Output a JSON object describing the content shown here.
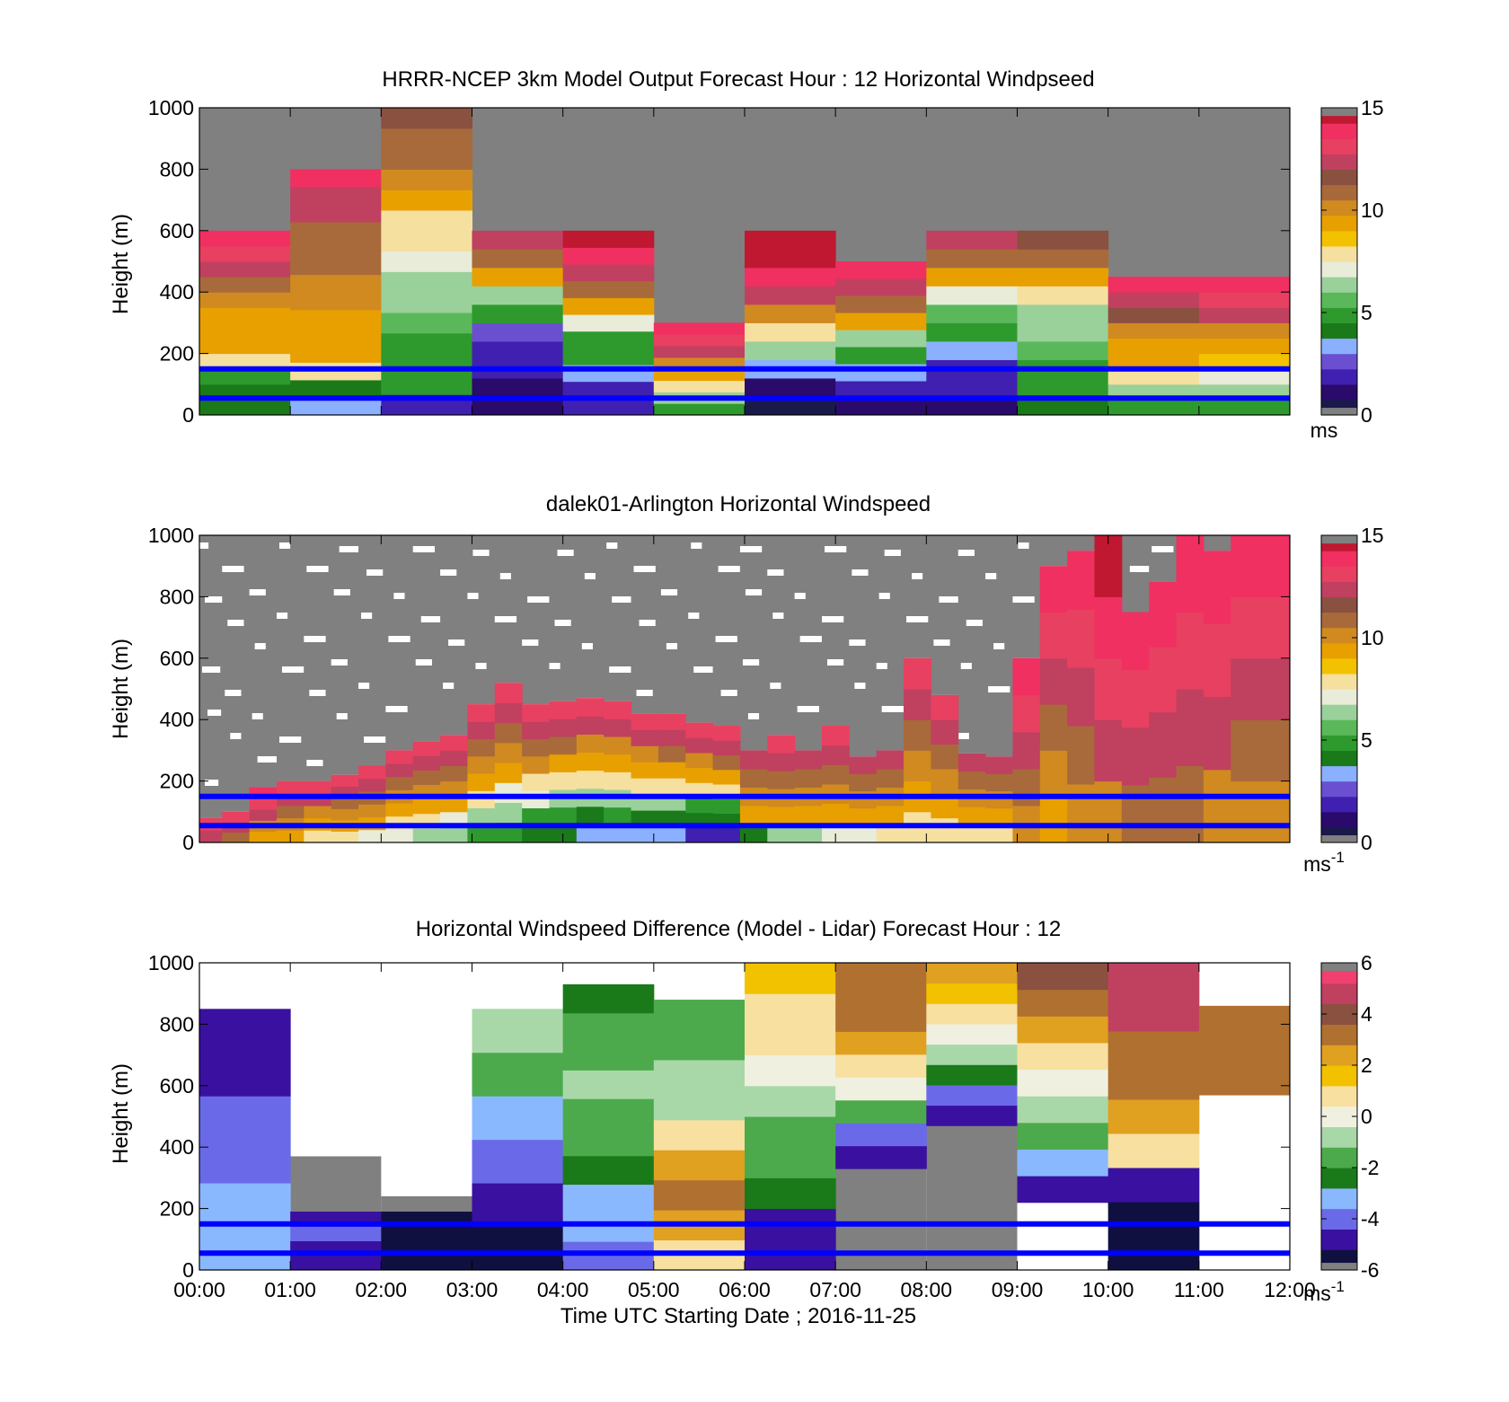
{
  "colors": {
    "background": "#ffffff",
    "no_data_gray": "#808080",
    "marker_line_blue": "#0000ff"
  },
  "colormaps": {
    "speed": [
      "#808080",
      "#1a1a4a",
      "#2a0a6a",
      "#4020b0",
      "#6a50d0",
      "#8ab0ff",
      "#1a7a1a",
      "#2e9a2e",
      "#5ab85a",
      "#9ad09a",
      "#e8ecd8",
      "#f5e0a0",
      "#f2c200",
      "#e8a000",
      "#d08a20",
      "#a86a3a",
      "#8a5040",
      "#c04060",
      "#e84060",
      "#f03060",
      "#c01830",
      "#808080"
    ],
    "diff": [
      "#808080",
      "#101040",
      "#3a10a0",
      "#6a6ae8",
      "#8ab8ff",
      "#1a7a1a",
      "#4caa4c",
      "#a8d8a8",
      "#f0f0e0",
      "#f8e0a0",
      "#f2c200",
      "#e0a020",
      "#b07030",
      "#8a5040",
      "#c04060",
      "#f04070",
      "#808080"
    ]
  },
  "chart_data": [
    {
      "type": "heatmap",
      "title": "HRRR-NCEP 3km Model Output   Forecast Hour : 12 Horizontal Windpseed",
      "ylabel": "Height (m)",
      "xlabel": "",
      "ylim": [
        0,
        1000
      ],
      "yticks": [
        "0",
        "200",
        "400",
        "600",
        "800",
        "1000"
      ],
      "xlim": [
        "00:00",
        "12:00"
      ],
      "colorbar": {
        "min": 0,
        "max": 15,
        "ticks": [
          "0",
          "5",
          "10",
          "15"
        ],
        "unit": "ms",
        "unit_sup": ""
      },
      "marker_lines_m": [
        150,
        55
      ],
      "columns": [
        {
          "t0": 0,
          "t1": 1,
          "top": 600,
          "v": [
            4,
            4,
            5,
            8,
            9.5,
            9.5,
            9.5,
            10,
            11,
            12,
            13,
            14
          ]
        },
        {
          "t0": 1,
          "t1": 2,
          "top": 800,
          "v": [
            3,
            4,
            8,
            9,
            9.5,
            9.5,
            10,
            10,
            10.5,
            11,
            11,
            12,
            12,
            14
          ]
        },
        {
          "t0": 2,
          "t1": 3,
          "top": 1000,
          "v": [
            2,
            4.5,
            4.5,
            5,
            5.5,
            6,
            6.5,
            7,
            7.5,
            8,
            9,
            10,
            10.5,
            11,
            11.5
          ]
        },
        {
          "t0": 3,
          "t1": 4,
          "top": 600,
          "v": [
            1,
            1,
            1.5,
            2,
            2.5,
            4.5,
            6,
            9,
            11,
            12
          ]
        },
        {
          "t0": 4,
          "t1": 5,
          "top": 600,
          "v": [
            1.5,
            2,
            3,
            4.5,
            5,
            7,
            9,
            11,
            12,
            14,
            14.5
          ]
        },
        {
          "t0": 5,
          "t1": 6,
          "top": 300,
          "v": [
            5,
            6,
            8,
            9,
            10,
            12,
            13,
            14
          ]
        },
        {
          "t0": 6,
          "t1": 7,
          "top": 600,
          "v": [
            0.5,
            1,
            3,
            6,
            8,
            10,
            12,
            13.5,
            14.5,
            15
          ]
        },
        {
          "t0": 7,
          "t1": 8,
          "top": 500,
          "v": [
            1,
            1.5,
            3,
            4.5,
            6.5,
            9,
            11,
            12,
            13.5
          ]
        },
        {
          "t0": 8,
          "t1": 9,
          "top": 600,
          "v": [
            1,
            1.5,
            2,
            3.5,
            4.5,
            5.5,
            7,
            9.5,
            11,
            12.5
          ]
        },
        {
          "t0": 9,
          "t1": 10,
          "top": 600,
          "v": [
            4,
            4.5,
            5,
            5.5,
            6,
            6.5,
            8,
            9.5,
            11,
            11.5
          ]
        },
        {
          "t0": 10,
          "t1": 11,
          "top": 450,
          "v": [
            5,
            6.5,
            7.5,
            9,
            9.5,
            10,
            11.5,
            12.5,
            13.5
          ]
        },
        {
          "t0": 11,
          "t1": 12,
          "top": 450,
          "v": [
            5,
            6,
            7,
            8.5,
            9.5,
            10,
            12,
            13,
            14
          ]
        }
      ]
    },
    {
      "type": "heatmap",
      "title": "dalek01-Arlington  Horizontal Windspeed",
      "ylabel": "Height (m)",
      "xlabel": "",
      "ylim": [
        0,
        1000
      ],
      "yticks": [
        "0",
        "200",
        "400",
        "600",
        "800",
        "1000"
      ],
      "xlim": [
        "00:00",
        "12:00"
      ],
      "colorbar": {
        "min": 0,
        "max": 15,
        "ticks": [
          "0",
          "5",
          "10",
          "15"
        ],
        "unit": "ms",
        "unit_sup": "-1"
      },
      "marker_lines_m": [
        150,
        55
      ],
      "columns": [
        {
          "t0": 0.0,
          "t1": 0.25,
          "top": 80,
          "v": [
            12,
            13
          ]
        },
        {
          "t0": 0.25,
          "t1": 0.55,
          "top": 100,
          "v": [
            11,
            12,
            13
          ]
        },
        {
          "t0": 0.55,
          "t1": 0.85,
          "top": 180,
          "v": [
            9,
            10,
            12,
            13,
            14
          ]
        },
        {
          "t0": 0.85,
          "t1": 1.15,
          "top": 200,
          "v": [
            9,
            10,
            11,
            12,
            13
          ]
        },
        {
          "t0": 1.15,
          "t1": 1.45,
          "top": 200,
          "v": [
            8,
            9,
            10,
            12,
            13
          ]
        },
        {
          "t0": 1.45,
          "t1": 1.75,
          "top": 220,
          "v": [
            8,
            9,
            10,
            11,
            12,
            13
          ]
        },
        {
          "t0": 1.75,
          "t1": 2.05,
          "top": 250,
          "v": [
            7,
            9,
            10,
            11,
            12,
            13
          ]
        },
        {
          "t0": 2.05,
          "t1": 2.35,
          "top": 300,
          "v": [
            7,
            8,
            9,
            10,
            11,
            12,
            13
          ]
        },
        {
          "t0": 2.35,
          "t1": 2.65,
          "top": 330,
          "v": [
            6,
            8,
            9,
            10,
            11,
            12,
            13
          ]
        },
        {
          "t0": 2.65,
          "t1": 2.95,
          "top": 350,
          "v": [
            6,
            7,
            9,
            10,
            11,
            12,
            13
          ]
        },
        {
          "t0": 2.95,
          "t1": 3.25,
          "top": 450,
          "v": [
            5,
            6,
            8,
            9,
            10,
            11,
            12,
            13
          ]
        },
        {
          "t0": 3.25,
          "t1": 3.55,
          "top": 520,
          "v": [
            5,
            6,
            7,
            9,
            10,
            11,
            12,
            13
          ]
        },
        {
          "t0": 3.55,
          "t1": 3.85,
          "top": 450,
          "v": [
            4,
            5,
            7,
            8,
            10,
            11,
            12,
            13
          ]
        },
        {
          "t0": 3.85,
          "t1": 4.15,
          "top": 460,
          "v": [
            4,
            5,
            6,
            8,
            9,
            11,
            12,
            13
          ]
        },
        {
          "t0": 4.15,
          "t1": 4.45,
          "top": 470,
          "v": [
            3,
            4,
            6,
            8,
            9,
            10,
            12,
            13
          ]
        },
        {
          "t0": 4.45,
          "t1": 4.75,
          "top": 460,
          "v": [
            3,
            5,
            6,
            8,
            9,
            10,
            12,
            13
          ]
        },
        {
          "t0": 4.75,
          "t1": 5.05,
          "top": 420,
          "v": [
            3,
            4,
            6,
            8,
            9,
            10,
            12,
            13
          ]
        },
        {
          "t0": 5.05,
          "t1": 5.35,
          "top": 420,
          "v": [
            3,
            4,
            6,
            8,
            9,
            11,
            12,
            13
          ]
        },
        {
          "t0": 5.35,
          "t1": 5.65,
          "top": 390,
          "v": [
            2,
            4,
            5,
            8,
            9,
            10,
            12,
            13
          ]
        },
        {
          "t0": 5.65,
          "t1": 5.95,
          "top": 380,
          "v": [
            2,
            4,
            5,
            8,
            9,
            11,
            12,
            13
          ]
        },
        {
          "t0": 5.95,
          "t1": 6.25,
          "top": 300,
          "v": [
            4,
            9,
            10,
            11,
            12
          ]
        },
        {
          "t0": 6.25,
          "t1": 6.55,
          "top": 350,
          "v": [
            6,
            9,
            10,
            11,
            12,
            13
          ]
        },
        {
          "t0": 6.55,
          "t1": 6.85,
          "top": 300,
          "v": [
            6,
            9,
            10,
            11,
            12
          ]
        },
        {
          "t0": 6.85,
          "t1": 7.15,
          "top": 380,
          "v": [
            7,
            9,
            10,
            11,
            12,
            13
          ]
        },
        {
          "t0": 7.15,
          "t1": 7.45,
          "top": 280,
          "v": [
            7,
            9,
            10,
            11,
            12
          ]
        },
        {
          "t0": 7.45,
          "t1": 7.75,
          "top": 300,
          "v": [
            8,
            9,
            10,
            11,
            12
          ]
        },
        {
          "t0": 7.75,
          "t1": 8.05,
          "top": 600,
          "v": [
            8,
            9,
            10,
            11,
            12,
            13
          ]
        },
        {
          "t0": 8.05,
          "t1": 8.35,
          "top": 480,
          "v": [
            8,
            9,
            10,
            11,
            12,
            13
          ]
        },
        {
          "t0": 8.35,
          "t1": 8.65,
          "top": 290,
          "v": [
            8,
            9,
            10,
            11,
            12
          ]
        },
        {
          "t0": 8.65,
          "t1": 8.95,
          "top": 280,
          "v": [
            8,
            9,
            10,
            11,
            12
          ]
        },
        {
          "t0": 8.95,
          "t1": 9.25,
          "top": 600,
          "v": [
            10,
            11,
            12,
            13,
            14
          ]
        },
        {
          "t0": 9.25,
          "t1": 9.55,
          "top": 900,
          "v": [
            9,
            10,
            11,
            12,
            13,
            14
          ]
        },
        {
          "t0": 9.55,
          "t1": 9.85,
          "top": 950,
          "v": [
            10,
            11,
            12,
            13,
            14
          ]
        },
        {
          "t0": 9.85,
          "t1": 10.15,
          "top": 1000,
          "v": [
            10,
            12,
            13,
            14,
            15
          ]
        },
        {
          "t0": 10.15,
          "t1": 10.45,
          "top": 750,
          "v": [
            11,
            12,
            13,
            14
          ]
        },
        {
          "t0": 10.45,
          "t1": 10.75,
          "top": 850,
          "v": [
            11,
            12,
            13,
            14
          ]
        },
        {
          "t0": 10.75,
          "t1": 11.05,
          "top": 1000,
          "v": [
            11,
            12,
            13,
            14
          ]
        },
        {
          "t0": 11.05,
          "t1": 11.35,
          "top": 950,
          "v": [
            10,
            12,
            13,
            14
          ]
        },
        {
          "t0": 11.35,
          "t1": 11.65,
          "top": 1000,
          "v": [
            10,
            11,
            12,
            13,
            14
          ]
        },
        {
          "t0": 11.65,
          "t1": 12.0,
          "top": 1000,
          "v": [
            10,
            11,
            12,
            13,
            14
          ]
        }
      ]
    },
    {
      "type": "heatmap",
      "title": "Horizontal Windspeed Difference (Model - Lidar) Forecast Hour : 12",
      "ylabel": "Height (m)",
      "xlabel": "Time UTC  Starting Date ; 2016-11-25",
      "ylim": [
        0,
        1000
      ],
      "yticks": [
        "0",
        "200",
        "400",
        "600",
        "800",
        "1000"
      ],
      "xticks": [
        "00:00",
        "01:00",
        "02:00",
        "03:00",
        "04:00",
        "05:00",
        "06:00",
        "07:00",
        "08:00",
        "09:00",
        "10:00",
        "11:00",
        "12:00"
      ],
      "xlim": [
        "00:00",
        "12:00"
      ],
      "colorbar": {
        "min": -6,
        "max": 6,
        "ticks": [
          "-6",
          "-4",
          "-2",
          "0",
          "2",
          "4",
          "6"
        ],
        "unit": "ms",
        "unit_sup": "-1"
      },
      "marker_lines_m": [
        150,
        55
      ],
      "columns": [
        {
          "t0": 0,
          "t1": 1,
          "bottom": 0,
          "top": 850,
          "v": [
            -3,
            -4,
            -5
          ]
        },
        {
          "t0": 1,
          "t1": 2,
          "bottom": 0,
          "top": 190,
          "v": [
            -5,
            -4.5,
            -4,
            -5
          ]
        },
        {
          "t0": 2,
          "t1": 3,
          "bottom": 0,
          "top": 190,
          "v": [
            -5.5,
            -6,
            -5.5
          ]
        },
        {
          "t0": 3,
          "t1": 4,
          "bottom": 0,
          "top": 850,
          "v": [
            -5.5,
            -5,
            -4,
            -3,
            -2,
            -1
          ]
        },
        {
          "t0": 4,
          "t1": 5,
          "bottom": 0,
          "top": 930,
          "v": [
            -4,
            -3.5,
            -3,
            -2.5,
            -2,
            -1.5,
            -1,
            -1.5,
            -2,
            -2.5
          ]
        },
        {
          "t0": 5,
          "t1": 6,
          "bottom": 0,
          "top": 880,
          "v": [
            1,
            2,
            3,
            2,
            1,
            -0.5,
            -1,
            -1.5,
            -2
          ]
        },
        {
          "t0": 6,
          "t1": 7,
          "bottom": 0,
          "top": 1000,
          "v": [
            -5,
            -4.5,
            -2.5,
            -2,
            -1.5,
            -1,
            0,
            0.5,
            1,
            1.5
          ]
        },
        {
          "t0": 7,
          "t1": 8,
          "bottom": 330,
          "top": 1000,
          "v": [
            -5,
            -4,
            -2,
            0,
            1,
            2,
            3,
            3.5,
            3
          ]
        },
        {
          "t0": 8,
          "t1": 9,
          "bottom": 470,
          "top": 1000,
          "v": [
            -5,
            -4,
            -2.5,
            -1,
            0,
            1,
            1.5,
            2
          ]
        },
        {
          "t0": 9,
          "t1": 10,
          "bottom": 220,
          "top": 1000,
          "v": [
            -5,
            -3,
            -2,
            -1,
            0,
            1,
            2,
            3,
            4
          ]
        },
        {
          "t0": 10,
          "t1": 11,
          "bottom": 0,
          "top": 1000,
          "v": [
            -6,
            -5.5,
            -5,
            1,
            2,
            3,
            3.5,
            4.5,
            5
          ]
        },
        {
          "t0": 11,
          "t1": 12,
          "bottom": 570,
          "top": 860,
          "v": [
            3,
            3.5,
            3
          ]
        }
      ]
    }
  ]
}
